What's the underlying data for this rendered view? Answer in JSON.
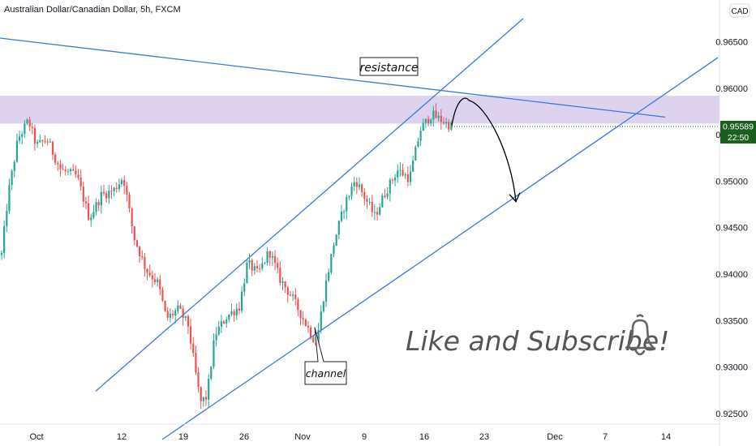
{
  "header": {
    "title": "Australian Dollar/Canadian Dollar, 5h, FXCM",
    "currency": "CAD"
  },
  "price_tag": {
    "price": "0.95589",
    "countdown": "22:50",
    "color": "#1b5e20"
  },
  "annotations": {
    "resistance": "resistance",
    "channel": "channel",
    "cta": "Like and Subscribe!",
    "cta_icon": "bell-icon"
  },
  "colors": {
    "up": "#26a69a",
    "down": "#ef5350",
    "line": "#3b78d8",
    "zone": "#b39ddb"
  },
  "chart_data": {
    "type": "candlestick",
    "title": "Australian Dollar/Canadian Dollar, 5h, FXCM",
    "x_ticks": [
      "Oct",
      "12",
      "19",
      "26",
      "Nov",
      "9",
      "16",
      "23",
      "Dec",
      "7",
      "14"
    ],
    "y_ticks": [
      "0.96500",
      "0.96000",
      "0.95500",
      "0.95000",
      "0.94500",
      "0.94000",
      "0.93500",
      "0.93000",
      "0.92500"
    ],
    "ylim": [
      0.9215,
      0.9695
    ],
    "last_price": 0.95589,
    "resistance_zone": [
      0.9562,
      0.9592
    ],
    "anchor_path": [
      [
        0,
        0.9405
      ],
      [
        10,
        0.9485
      ],
      [
        22,
        0.9545
      ],
      [
        35,
        0.9565
      ],
      [
        45,
        0.9538
      ],
      [
        58,
        0.9545
      ],
      [
        75,
        0.9512
      ],
      [
        95,
        0.9505
      ],
      [
        110,
        0.946
      ],
      [
        125,
        0.9485
      ],
      [
        140,
        0.949
      ],
      [
        152,
        0.9505
      ],
      [
        165,
        0.944
      ],
      [
        180,
        0.9405
      ],
      [
        195,
        0.939
      ],
      [
        205,
        0.9352
      ],
      [
        220,
        0.9362
      ],
      [
        232,
        0.9345
      ],
      [
        240,
        0.93
      ],
      [
        247,
        0.9262
      ],
      [
        255,
        0.9268
      ],
      [
        265,
        0.9335
      ],
      [
        280,
        0.9355
      ],
      [
        295,
        0.9365
      ],
      [
        305,
        0.9412
      ],
      [
        318,
        0.94
      ],
      [
        332,
        0.9425
      ],
      [
        345,
        0.9395
      ],
      [
        360,
        0.9375
      ],
      [
        375,
        0.935
      ],
      [
        390,
        0.9325
      ],
      [
        400,
        0.9382
      ],
      [
        412,
        0.9435
      ],
      [
        425,
        0.9475
      ],
      [
        438,
        0.9502
      ],
      [
        450,
        0.9482
      ],
      [
        462,
        0.9462
      ],
      [
        475,
        0.9488
      ],
      [
        490,
        0.9512
      ],
      [
        505,
        0.9503
      ],
      [
        518,
        0.9555
      ],
      [
        532,
        0.9572
      ],
      [
        545,
        0.9565
      ],
      [
        557,
        0.9559
      ]
    ],
    "trendlines": [
      {
        "name": "resistance-trendline",
        "from": [
          0,
          0.9654
        ],
        "to": [
          820,
          0.9569
        ]
      },
      {
        "name": "channel-upper",
        "from": [
          118,
          0.9274
        ],
        "to": [
          645,
          0.9675
        ]
      },
      {
        "name": "channel-lower",
        "from": [
          200,
          0.9222
        ],
        "to": [
          885,
          0.9633
        ]
      }
    ],
    "projection": {
      "from": [
        557,
        0.956
      ],
      "peak": [
        578,
        0.9587
      ],
      "to": [
        636,
        0.9478
      ]
    }
  }
}
